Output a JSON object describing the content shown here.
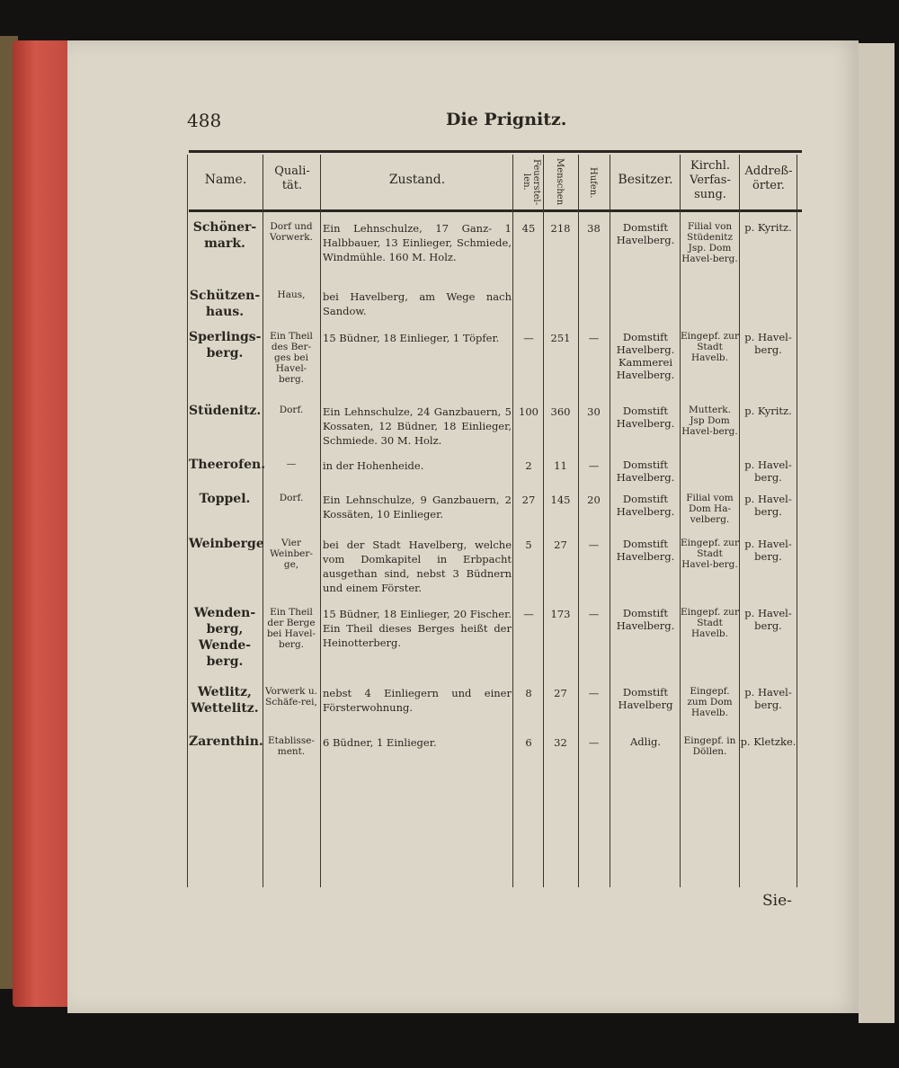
{
  "page": {
    "number": "488",
    "title": "Die Prignitz.",
    "catchword": "Sie-"
  },
  "headers": {
    "name": "Name.",
    "qualitaet": "Quali-tät.",
    "zustand": "Zustand.",
    "feuerstellen": "Feuerstel-len.",
    "menschen": "Menschen",
    "hufen": "Hufen.",
    "besitzer": "Besitzer.",
    "kirchl": "Kirchl. Verfas-sung.",
    "address": "Addreß-örter."
  },
  "rows": [
    {
      "name": "Schöner-mark.",
      "qual": "Dorf und Vorwerk.",
      "zustand": "Ein Lehnschulze, 17 Ganz- 1 Halbbauer, 13 Einlieger, Schmiede, Windmühle. 160 M. Holz.",
      "f": "45",
      "m": "218",
      "h": "38",
      "b": "Domstift Havelberg.",
      "k": "Filial von Stüdenitz Jsp. Dom Havel-berg.",
      "a": "p. Kyritz."
    },
    {
      "name": "Schützen-haus.",
      "qual": "Haus,",
      "zustand": "bei Havelberg, am Wege nach Sandow.",
      "f": "",
      "m": "",
      "h": "",
      "b": "",
      "k": "",
      "a": ""
    },
    {
      "name": "Sperlings-berg.",
      "qual": "Ein Theil des Ber-ges bei Havel-berg.",
      "zustand": "15 Büdner, 18 Einlieger, 1 Töpfer.",
      "f": "—",
      "m": "251",
      "h": "—",
      "b": "Domstift Havelberg. Kammerei Havelberg.",
      "k": "Eingepf. zur Stadt Havelb.",
      "a": "p. Havel-berg."
    },
    {
      "name": "Stüdenitz.",
      "qual": "Dorf.",
      "zustand": "Ein Lehnschulze, 24 Ganzbauern, 5 Kossaten, 12 Büdner, 18 Einlieger, Schmiede. 30 M. Holz.",
      "f": "100",
      "m": "360",
      "h": "30",
      "b": "Domstift Havelberg.",
      "k": "Mutterk. Jsp Dom Havel-berg.",
      "a": "p. Kyritz."
    },
    {
      "name": "Theerofen.",
      "qual": "—",
      "zustand": "in der Hohenheide.",
      "f": "2",
      "m": "11",
      "h": "—",
      "b": "Domstift Havelberg.",
      "k": "",
      "a": "p. Havel-berg."
    },
    {
      "name": "Toppel.",
      "qual": "Dorf.",
      "zustand": "Ein Lehnschulze, 9 Ganzbauern, 2 Kossäten, 10 Einlieger.",
      "f": "27",
      "m": "145",
      "h": "20",
      "b": "Domstift Havelberg.",
      "k": "Filial vom Dom Ha-velberg.",
      "a": "p. Havel-berg."
    },
    {
      "name": "Weinberge",
      "qual": "Vier Weinber-ge,",
      "zustand": "bei der Stadt Havelberg, welche vom Domkapitel in Erbpacht ausgethan sind, nebst 3 Büdnern und einem Förster.",
      "f": "5",
      "m": "27",
      "h": "—",
      "b": "Domstift Havelberg.",
      "k": "Eingepf. zur Stadt Havel-berg.",
      "a": "p. Havel-berg."
    },
    {
      "name": "Wenden-berg, Wende-berg.",
      "qual": "Ein Theil der Berge bei Havel-berg.",
      "zustand": "15 Büdner, 18 Einlieger, 20 Fischer. Ein Theil dieses Berges heißt der Heinotterberg.",
      "f": "—",
      "m": "173",
      "h": "—",
      "b": "Domstift Havelberg.",
      "k": "Eingepf. zur Stadt Havelb.",
      "a": "p. Havel-berg."
    },
    {
      "name": "Wetlitz, Wettelitz.",
      "qual": "Vorwerk u. Schäfe-rei,",
      "zustand": "nebst 4 Einliegern und einer Försterwohnung.",
      "f": "8",
      "m": "27",
      "h": "—",
      "b": "Domstift Havelberg",
      "k": "Eingepf. zum Dom Havelb.",
      "a": "p. Havel-berg."
    },
    {
      "name": "Zarenthin.",
      "qual": "Etablisse-ment.",
      "zustand": "6 Büdner, 1 Einlieger.",
      "f": "6",
      "m": "32",
      "h": "—",
      "b": "Adlig.",
      "k": "Eingepf. in Döllen.",
      "a": "p. Kletzke."
    }
  ]
}
